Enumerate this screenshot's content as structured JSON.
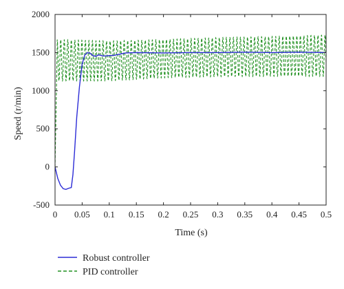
{
  "chart_data": {
    "type": "line",
    "title": "",
    "xlabel": "Time (s)",
    "ylabel": "Speed (r/min)",
    "xlim": [
      0,
      0.5
    ],
    "ylim": [
      -500,
      2000
    ],
    "xticks": [
      0,
      0.05,
      0.1,
      0.15,
      0.2,
      0.25,
      0.3,
      0.35,
      0.4,
      0.45,
      0.5
    ],
    "xtick_labels": [
      "0",
      "0.05",
      "0.1",
      "0.15",
      "0.2",
      "0.25",
      "0.3",
      "0.35",
      "0.4",
      "0.45",
      "0.5"
    ],
    "yticks": [
      -500,
      0,
      500,
      1000,
      1500,
      2000
    ],
    "ytick_labels": [
      "-500",
      "0",
      "500",
      "1000",
      "1500",
      "2000"
    ],
    "grid": false,
    "legend_position": "bottom-left-outside",
    "series": [
      {
        "name": "Robust controller",
        "color": "#2b2bd6",
        "style": "solid",
        "x": [
          0,
          0.005,
          0.01,
          0.015,
          0.02,
          0.025,
          0.03,
          0.033,
          0.036,
          0.04,
          0.045,
          0.05,
          0.055,
          0.06,
          0.065,
          0.07,
          0.075,
          0.08,
          0.09,
          0.1,
          0.11,
          0.12,
          0.13,
          0.15,
          0.2,
          0.25,
          0.3,
          0.35,
          0.4,
          0.45,
          0.5
        ],
        "y": [
          0,
          -150,
          -240,
          -285,
          -295,
          -280,
          -270,
          -100,
          200,
          650,
          1050,
          1350,
          1470,
          1500,
          1490,
          1460,
          1450,
          1470,
          1455,
          1460,
          1465,
          1480,
          1495,
          1500,
          1495,
          1500,
          1500,
          1505,
          1500,
          1505,
          1500
        ]
      },
      {
        "name": "PID controller",
        "color": "#1f8f1f",
        "style": "dashed",
        "oscillation": {
          "start_x": 0.004,
          "rise_to": 1600,
          "period": 0.0065,
          "center": [
            [
              0.004,
              1400
            ],
            [
              0.1,
              1390
            ],
            [
              0.2,
              1420
            ],
            [
              0.3,
              1440
            ],
            [
              0.4,
              1450
            ],
            [
              0.5,
              1460
            ]
          ],
          "amplitude": [
            [
              0.004,
              270
            ],
            [
              0.1,
              260
            ],
            [
              0.2,
              250
            ],
            [
              0.3,
              255
            ],
            [
              0.4,
              260
            ],
            [
              0.5,
              270
            ]
          ]
        }
      }
    ]
  },
  "legend": {
    "items": [
      {
        "label": "Robust controller",
        "color": "#2b2bd6",
        "style": "solid"
      },
      {
        "label": "PID controller",
        "color": "#1f8f1f",
        "style": "dashed"
      }
    ]
  }
}
